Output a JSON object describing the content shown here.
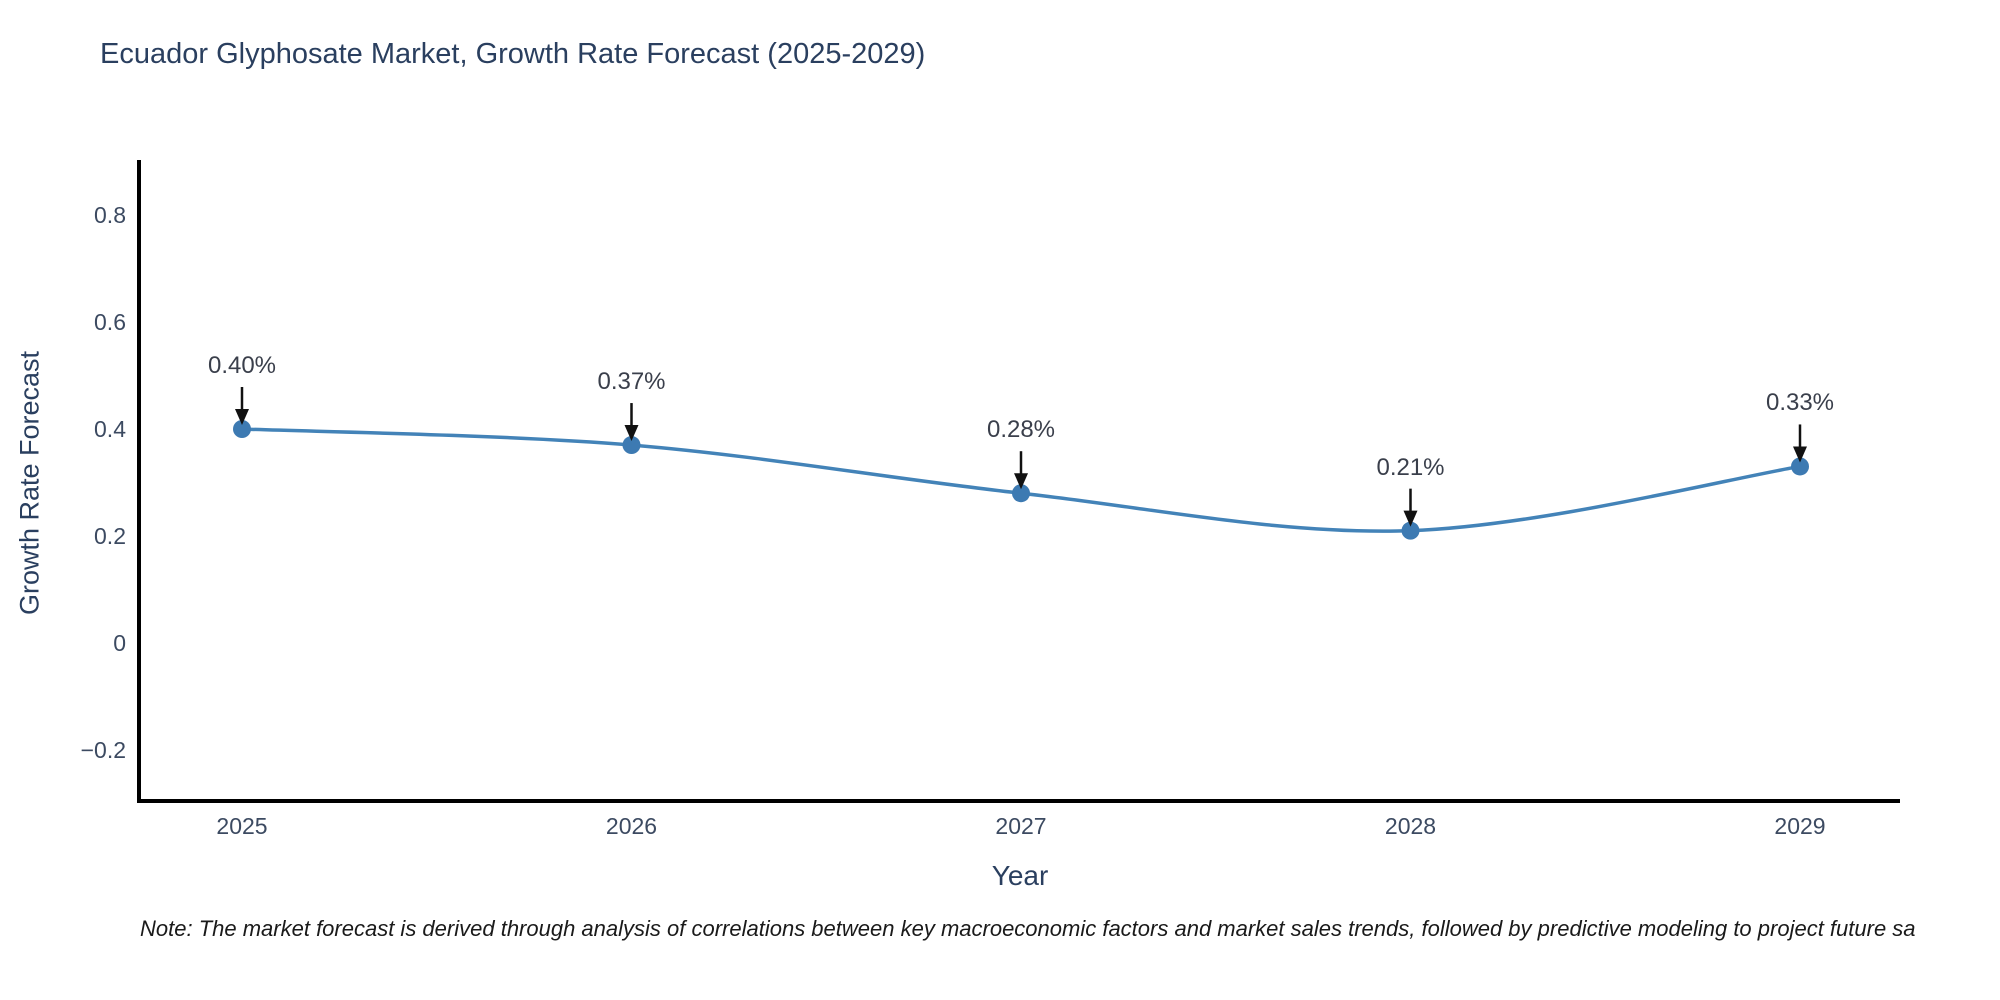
{
  "page": {
    "background": "#ffffff"
  },
  "chart_data": {
    "type": "line",
    "title": "Ecuador Glyphosate Market, Growth Rate Forecast (2025-2029)",
    "xlabel": "Year",
    "ylabel": "Growth Rate Forecast",
    "x": [
      2025,
      2026,
      2027,
      2028,
      2029
    ],
    "series": [
      {
        "name": "Growth Rate Forecast",
        "values": [
          0.4,
          0.37,
          0.28,
          0.21,
          0.33
        ]
      }
    ],
    "point_labels": [
      "0.40%",
      "0.37%",
      "0.28%",
      "0.21%",
      "0.33%"
    ],
    "x_tick_labels": [
      "2025",
      "2026",
      "2027",
      "2028",
      "2029"
    ],
    "y_tick_values": [
      0.8,
      0.6,
      0.4,
      0.2,
      0,
      -0.2
    ],
    "y_tick_labels": [
      "0.8",
      "0.6",
      "0.4",
      "0.2",
      "0",
      "−0.2"
    ],
    "xlim": [
      2024.73,
      2029.27
    ],
    "ylim": [
      -0.3,
      0.9
    ],
    "grid": false,
    "legend_position": "none",
    "line_style": "smooth",
    "line_color": "#4383b8",
    "marker_color": "#3d7ab2",
    "arrow_color": "#111111",
    "axis_line_color": "#000000"
  },
  "note": "Note: The market forecast is derived through analysis of correlations between key macroeconomic factors and market sales trends, followed by predictive modeling to project future sa"
}
